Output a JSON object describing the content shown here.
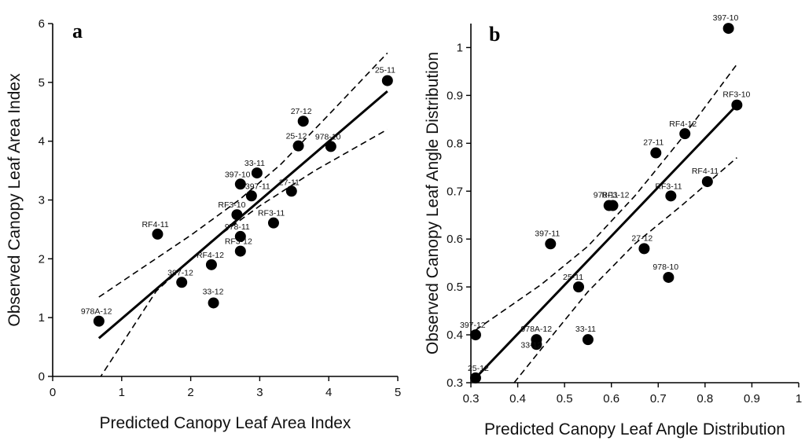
{
  "chart_data": [
    {
      "type": "scatter",
      "panel_label": "a",
      "xlabel": "Predicted Canopy Leaf Area Index",
      "ylabel": "Observed Canopy Leaf Area Index",
      "xlim": [
        0,
        5
      ],
      "ylim": [
        0,
        6
      ],
      "xticks": [
        0,
        1,
        2,
        3,
        4,
        5
      ],
      "yticks": [
        0,
        1,
        2,
        3,
        4,
        5,
        6
      ],
      "grid": false,
      "points": [
        {
          "label": "978A-12",
          "x": 0.67,
          "y": 0.94
        },
        {
          "label": "RF4-11",
          "x": 1.52,
          "y": 2.42
        },
        {
          "label": "397-12",
          "x": 1.87,
          "y": 1.6
        },
        {
          "label": "RF4-12",
          "x": 2.3,
          "y": 1.9
        },
        {
          "label": "33-12",
          "x": 2.33,
          "y": 1.25
        },
        {
          "label": "RF3-10",
          "x": 2.67,
          "y": 2.75
        },
        {
          "label": "978-11",
          "x": 2.72,
          "y": 2.38
        },
        {
          "label": "RF3-12",
          "x": 2.72,
          "y": 2.13
        },
        {
          "label": "397-10",
          "x": 2.72,
          "y": 3.27
        },
        {
          "label": "397-11",
          "x": 2.88,
          "y": 3.07
        },
        {
          "label": "33-11",
          "x": 2.96,
          "y": 3.46
        },
        {
          "label": "RF3-11",
          "x": 3.2,
          "y": 2.61
        },
        {
          "label": "27-11",
          "x": 3.46,
          "y": 3.15
        },
        {
          "label": "25-12",
          "x": 3.56,
          "y": 3.92
        },
        {
          "label": "27-12",
          "x": 3.63,
          "y": 4.34
        },
        {
          "label": "978-10",
          "x": 4.03,
          "y": 3.91
        },
        {
          "label": "25-11",
          "x": 4.85,
          "y": 5.03
        }
      ],
      "fit_line": [
        [
          0.67,
          0.65
        ],
        [
          4.85,
          4.85
        ]
      ],
      "confidence_upper": [
        [
          0.67,
          1.35
        ],
        [
          2.0,
          2.4
        ],
        [
          2.7,
          3.0
        ],
        [
          3.3,
          3.6
        ],
        [
          4.0,
          4.45
        ],
        [
          4.85,
          5.5
        ]
      ],
      "confidence_lower": [
        [
          0.67,
          -0.05
        ],
        [
          1.5,
          1.45
        ],
        [
          2.3,
          2.3
        ],
        [
          3.0,
          2.9
        ],
        [
          3.8,
          3.5
        ],
        [
          4.85,
          4.2
        ]
      ]
    },
    {
      "type": "scatter",
      "panel_label": "b",
      "xlabel": "Predicted Canopy Leaf Angle Distribution",
      "ylabel": "Observed Canopy Leaf Angle Distribution",
      "xlim": [
        0.3,
        1
      ],
      "ylim": [
        0.3,
        1.05
      ],
      "xticks": [
        0.3,
        0.4,
        0.5,
        0.6,
        0.7,
        0.8,
        0.9,
        1
      ],
      "yticks": [
        0.3,
        0.4,
        0.5,
        0.6,
        0.7,
        0.8,
        0.9,
        1
      ],
      "grid": false,
      "points": [
        {
          "label": "25-12",
          "x": 0.31,
          "y": 0.31
        },
        {
          "label": "397-12",
          "x": 0.31,
          "y": 0.4
        },
        {
          "label": "978A-12",
          "x": 0.44,
          "y": 0.39
        },
        {
          "label": "33-12",
          "x": 0.44,
          "y": 0.38
        },
        {
          "label": "397-11",
          "x": 0.47,
          "y": 0.59
        },
        {
          "label": "25-11",
          "x": 0.53,
          "y": 0.5
        },
        {
          "label": "33-11",
          "x": 0.55,
          "y": 0.39
        },
        {
          "label": "978-11",
          "x": 0.595,
          "y": 0.67
        },
        {
          "label": "RF3-12",
          "x": 0.603,
          "y": 0.67
        },
        {
          "label": "27-12",
          "x": 0.67,
          "y": 0.58
        },
        {
          "label": "27-11",
          "x": 0.695,
          "y": 0.78
        },
        {
          "label": "978-10",
          "x": 0.722,
          "y": 0.52
        },
        {
          "label": "RF3-11",
          "x": 0.727,
          "y": 0.69
        },
        {
          "label": "RF4-12",
          "x": 0.757,
          "y": 0.82
        },
        {
          "label": "RF4-11",
          "x": 0.805,
          "y": 0.72
        },
        {
          "label": "397-10",
          "x": 0.85,
          "y": 1.04
        },
        {
          "label": "RF3-10",
          "x": 0.868,
          "y": 0.88
        }
      ],
      "fit_line": [
        [
          0.31,
          0.31
        ],
        [
          0.868,
          0.88
        ]
      ],
      "confidence_upper": [
        [
          0.31,
          0.41
        ],
        [
          0.45,
          0.505
        ],
        [
          0.55,
          0.585
        ],
        [
          0.65,
          0.69
        ],
        [
          0.75,
          0.81
        ],
        [
          0.868,
          0.965
        ]
      ],
      "confidence_lower": [
        [
          0.31,
          0.2
        ],
        [
          0.45,
          0.37
        ],
        [
          0.55,
          0.49
        ],
        [
          0.65,
          0.59
        ],
        [
          0.75,
          0.67
        ],
        [
          0.868,
          0.77
        ]
      ]
    }
  ]
}
